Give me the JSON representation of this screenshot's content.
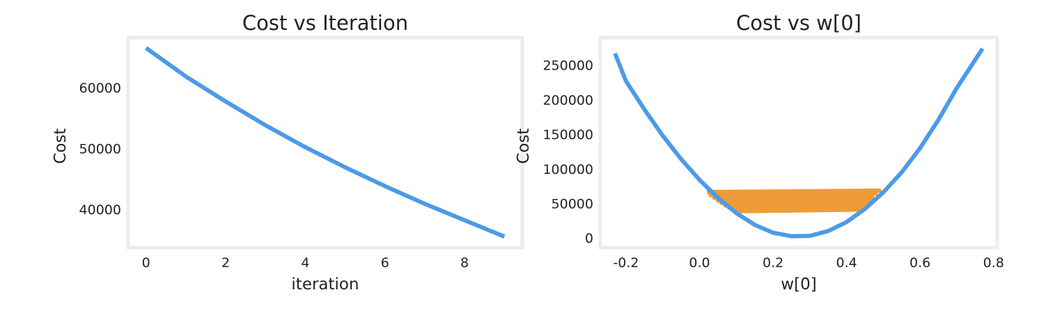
{
  "colors": {
    "blue": "#4c9be8",
    "orange": "#ef9b38",
    "frame": "#ececec",
    "text": "#222222"
  },
  "chart_data": [
    {
      "type": "line",
      "title": "Cost vs Iteration",
      "xlabel": "iteration",
      "ylabel": "Cost",
      "xlim": [
        -0.45,
        9.45
      ],
      "ylim": [
        33700,
        68200
      ],
      "xticks": [
        0,
        2,
        4,
        6,
        8
      ],
      "yticks": [
        40000,
        50000,
        60000
      ],
      "grid": false,
      "series": [
        {
          "x": [
            0,
            1,
            2,
            3,
            4,
            5,
            6,
            7,
            8,
            9
          ],
          "values": [
            66500,
            61800,
            57700,
            53800,
            50200,
            46900,
            43800,
            40900,
            38200,
            35500
          ]
        }
      ]
    },
    {
      "type": "line",
      "title": "Cost vs w[0]",
      "xlabel": "w[0]",
      "ylabel": "Cost",
      "xlim": [
        -0.27,
        0.81
      ],
      "ylim": [
        -14000,
        290000
      ],
      "xticks": [
        -0.2,
        0.0,
        0.2,
        0.4,
        0.6,
        0.8
      ],
      "yticks": [
        0,
        50000,
        100000,
        150000,
        200000,
        250000
      ],
      "grid": false,
      "series": [
        {
          "x": [
            -0.23,
            -0.2,
            -0.15,
            -0.1,
            -0.05,
            0.0,
            0.05,
            0.1,
            0.15,
            0.2,
            0.25,
            0.3,
            0.35,
            0.4,
            0.45,
            0.5,
            0.55,
            0.6,
            0.65,
            0.7,
            0.77
          ],
          "values": [
            267000,
            227000,
            186000,
            148000,
            114000,
            84000,
            58000,
            36000,
            19000,
            7500,
            2500,
            3000,
            10000,
            23000,
            42000,
            66000,
            95000,
            130000,
            171000,
            217000,
            274000
          ]
        },
        {
          "x": [
            0.02,
            0.49,
            0.03,
            0.48,
            0.04,
            0.47,
            0.05,
            0.47,
            0.06,
            0.46,
            0.07,
            0.46,
            0.08,
            0.45,
            0.09,
            0.45,
            0.1,
            0.44
          ],
          "values": [
            66500,
            68500,
            62000,
            64500,
            58000,
            60000,
            54000,
            56500,
            50500,
            53000,
            47000,
            49500,
            44000,
            46500,
            41000,
            44000,
            38500,
            41000
          ]
        }
      ]
    }
  ]
}
